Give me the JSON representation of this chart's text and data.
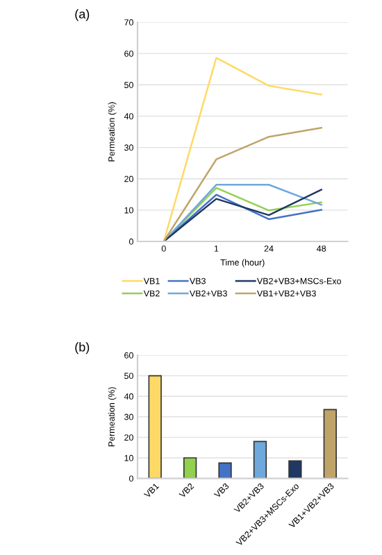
{
  "chart_data": [
    {
      "type": "line",
      "title": "(a)",
      "xlabel": "Time (hour)",
      "ylabel": "Permeation (%)",
      "categories": [
        "0",
        "1",
        "24",
        "48"
      ],
      "ylim": [
        0,
        70
      ],
      "yticks": [
        0,
        10,
        20,
        30,
        40,
        50,
        60,
        70
      ],
      "grid": "y",
      "legend": "bottom",
      "marker": "none",
      "line_style": "solid",
      "series": [
        {
          "name": "VB1",
          "color": "#ffd966",
          "values": [
            0,
            58.6,
            49.7,
            46.9
          ]
        },
        {
          "name": "VB2",
          "color": "#92d050",
          "values": [
            0,
            17.1,
            9.9,
            12.5
          ]
        },
        {
          "name": "VB3",
          "color": "#4472c4",
          "values": [
            0,
            14.9,
            7.1,
            10.1
          ]
        },
        {
          "name": "VB2+VB3",
          "color": "#6fa8dc",
          "values": [
            0,
            18.1,
            18.1,
            11.7
          ]
        },
        {
          "name": "VB2+VB3+MSCs-Exo",
          "color": "#1f3864",
          "values": [
            0,
            13.6,
            8.4,
            16.5
          ]
        },
        {
          "name": "VB1+VB2+VB3",
          "color": "#bfa46a",
          "values": [
            0,
            26.2,
            33.4,
            36.3
          ]
        }
      ]
    },
    {
      "type": "bar",
      "title": "(b)",
      "ylabel": "Permeation (%)",
      "categories": [
        "VB1",
        "VB2",
        "VB3",
        "VB2+VB3",
        "VB2+VB3+MSCs-Exo",
        "VB1+VB2+VB3"
      ],
      "values": [
        50,
        10,
        7.5,
        18,
        8.5,
        33.5
      ],
      "colors": [
        "#ffd966",
        "#92d050",
        "#4472c4",
        "#6fa8dc",
        "#1f3864",
        "#bfa46a"
      ],
      "ylim": [
        0,
        60
      ],
      "yticks": [
        0,
        10,
        20,
        30,
        40,
        50,
        60
      ],
      "grid": "y"
    }
  ]
}
